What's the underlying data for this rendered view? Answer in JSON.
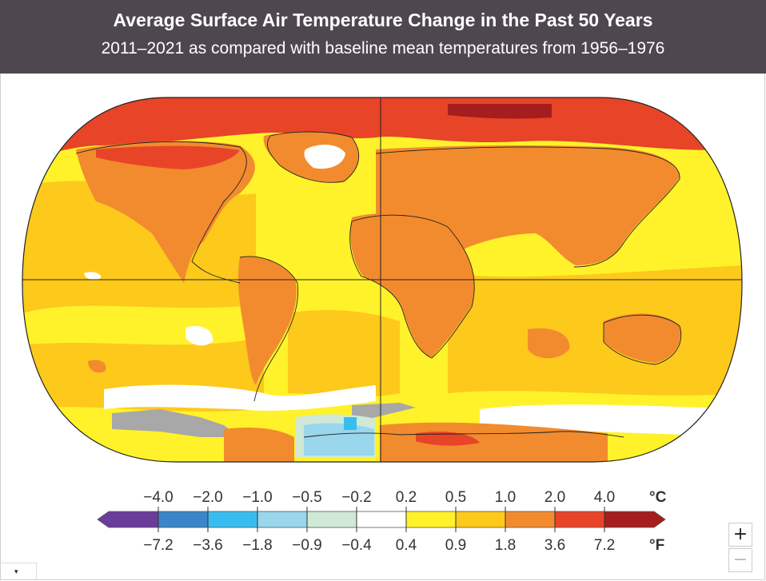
{
  "header": {
    "title": "Average Surface Air Temperature Change in the Past 50 Years",
    "subtitle": "2011–2021 as compared with baseline mean temperatures from 1956–1976"
  },
  "legend": {
    "unit_c": "°C",
    "unit_f": "°F",
    "c_labels": [
      "−4.0",
      "−2.0",
      "−1.0",
      "−0.5",
      "−0.2",
      "0.2",
      "0.5",
      "1.0",
      "2.0",
      "4.0"
    ],
    "f_labels": [
      "−7.2",
      "−3.6",
      "−1.8",
      "−0.9",
      "−0.4",
      "0.4",
      "0.9",
      "1.8",
      "3.6",
      "7.2"
    ],
    "colors": [
      "#6a3d9a",
      "#3a86c8",
      "#39bdf0",
      "#9ad6ec",
      "#cfe9d6",
      "#ffffff",
      "#fff22a",
      "#fdc91b",
      "#f28b2e",
      "#e84428",
      "#a61d1d"
    ]
  },
  "map": {
    "colors": {
      "yellow_light": "#fff22a",
      "yellow": "#fdc91b",
      "orange": "#f28b2e",
      "red": "#e84428",
      "dark_red": "#a61d1d",
      "white": "#ffffff",
      "gray": "#a8a8a8",
      "light_blue": "#9ad6ec",
      "blue": "#39bdf0",
      "pale_green": "#cfe9d6"
    }
  },
  "controls": {
    "zoom_in": "+",
    "zoom_out": "−",
    "menu_caret": "▾"
  }
}
